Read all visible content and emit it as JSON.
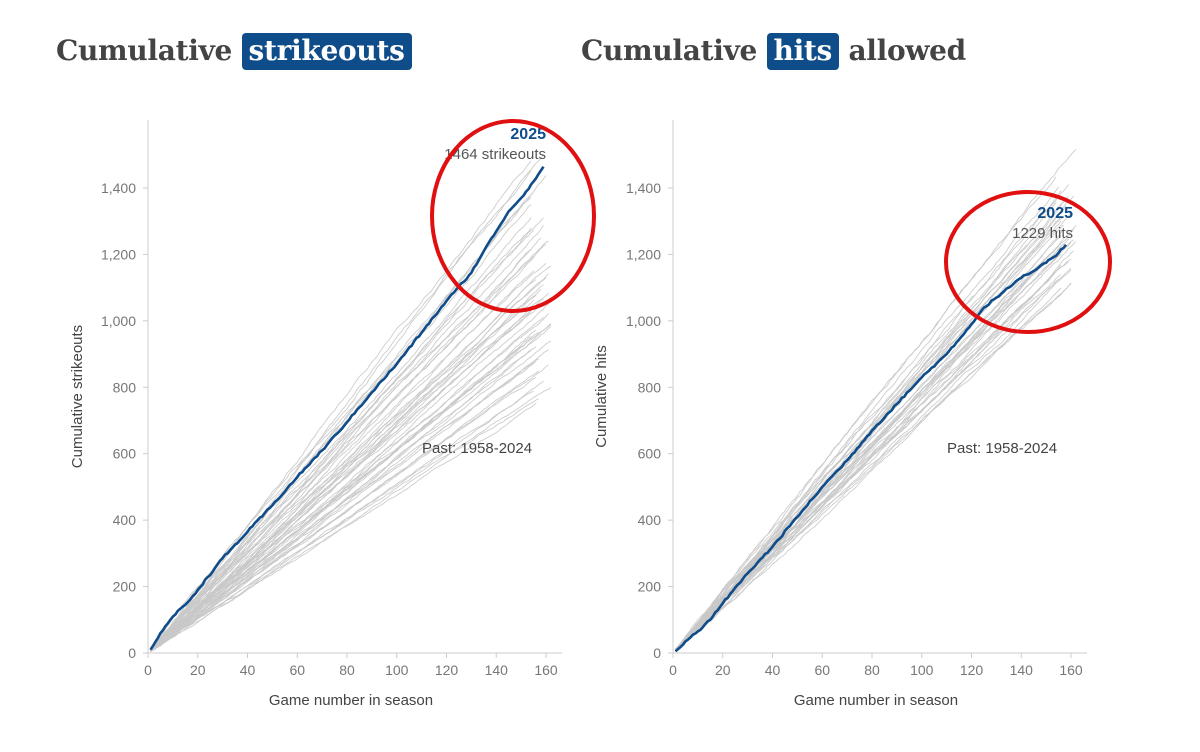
{
  "titles": {
    "left": {
      "prefix": "Cumulative",
      "highlight": "strikeouts",
      "suffix": ""
    },
    "right": {
      "prefix": "Cumulative",
      "highlight": "hits",
      "suffix": "allowed"
    }
  },
  "colors": {
    "highlight": "#0f4c8a",
    "current_line": "#0f4c8a",
    "past_lines": "#c8c8c8",
    "circle": "#e01010",
    "axis": "#cccccc"
  },
  "chart_data": [
    {
      "type": "line",
      "title": "Cumulative strikeouts",
      "xlabel": "Game number in season",
      "ylabel": "Cumulative strikeouts",
      "xlim": [
        0,
        165
      ],
      "ylim": [
        0,
        1600
      ],
      "xticks": [
        0,
        20,
        40,
        60,
        80,
        100,
        120,
        140,
        160
      ],
      "yticks": [
        0,
        200,
        400,
        600,
        800,
        1000,
        1200,
        1400
      ],
      "ytick_labels": [
        "0",
        "200",
        "400",
        "600",
        "800",
        "1,000",
        "1,200",
        "1,400"
      ],
      "highlight_series": {
        "name": "2025",
        "x": [
          1,
          5,
          10,
          15,
          20,
          30,
          40,
          50,
          60,
          70,
          80,
          90,
          100,
          110,
          120,
          130,
          135,
          140,
          145,
          150,
          155,
          159
        ],
        "y": [
          10,
          60,
          110,
          145,
          190,
          285,
          365,
          445,
          530,
          610,
          695,
          785,
          870,
          965,
          1060,
          1145,
          1210,
          1270,
          1330,
          1370,
          1420,
          1464
        ]
      },
      "annotation_year": "2025",
      "annotation_value": "1464 strikeouts",
      "past_label": "Past: 1958-2024",
      "past_range": "1958-2024",
      "past_season_totals_approx": [
        1500,
        1480,
        1450,
        1420,
        1390,
        1370,
        1350,
        1320,
        1300,
        1290,
        1280,
        1270,
        1255,
        1240,
        1225,
        1210,
        1195,
        1180,
        1165,
        1150,
        1140,
        1130,
        1120,
        1110,
        1100,
        1090,
        1080,
        1070,
        1060,
        1050,
        1040,
        1030,
        1020,
        1010,
        1000,
        990,
        980,
        970,
        960,
        950,
        940,
        930,
        920,
        905,
        890,
        875,
        860,
        845,
        830,
        815,
        800,
        785,
        770,
        750
      ]
    },
    {
      "type": "line",
      "title": "Cumulative hits allowed",
      "xlabel": "Game number in season",
      "ylabel": "Cumulative hits",
      "xlim": [
        0,
        165
      ],
      "ylim": [
        0,
        1600
      ],
      "xticks": [
        0,
        20,
        40,
        60,
        80,
        100,
        120,
        140,
        160
      ],
      "yticks": [
        0,
        200,
        400,
        600,
        800,
        1000,
        1200,
        1400
      ],
      "ytick_labels": [
        "0",
        "200",
        "400",
        "600",
        "800",
        "1,000",
        "1,200",
        "1,400"
      ],
      "highlight_series": {
        "name": "2025",
        "x": [
          1,
          5,
          10,
          15,
          20,
          30,
          40,
          50,
          60,
          70,
          80,
          90,
          100,
          110,
          120,
          125,
          130,
          135,
          140,
          145,
          150,
          155,
          158
        ],
        "y": [
          5,
          35,
          65,
          100,
          150,
          240,
          320,
          410,
          500,
          580,
          670,
          750,
          830,
          900,
          990,
          1040,
          1070,
          1100,
          1130,
          1150,
          1175,
          1205,
          1229
        ]
      },
      "annotation_year": "2025",
      "annotation_value": "1229 hits",
      "past_label": "Past: 1958-2024",
      "past_range": "1958-2024",
      "past_season_totals_approx": [
        1520,
        1440,
        1420,
        1400,
        1390,
        1380,
        1370,
        1360,
        1350,
        1340,
        1330,
        1320,
        1310,
        1300,
        1295,
        1290,
        1280,
        1270,
        1260,
        1250,
        1245,
        1240,
        1235,
        1230,
        1220,
        1210,
        1200,
        1190,
        1180,
        1170,
        1160,
        1150,
        1140,
        1130,
        1120,
        1110,
        1100
      ]
    }
  ]
}
